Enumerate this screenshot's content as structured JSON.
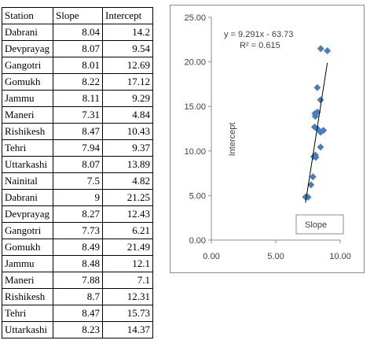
{
  "table": {
    "headers": [
      "Station",
      "Slope",
      "Intercept"
    ],
    "rows": [
      [
        "Dabrani",
        "8.04",
        "14.2"
      ],
      [
        "Devprayag",
        "8.07",
        "9.54"
      ],
      [
        "Gangotri",
        "8.01",
        "12.69"
      ],
      [
        "Gomukh",
        "8.22",
        "17.12"
      ],
      [
        "Jammu",
        "8.11",
        "9.29"
      ],
      [
        "Maneri",
        "7.31",
        "4.84"
      ],
      [
        "Rishikesh",
        "8.47",
        "10.43"
      ],
      [
        "Tehri",
        "7.94",
        "9.37"
      ],
      [
        "Uttarkashi",
        "8.07",
        "13.89"
      ],
      [
        "Nainital",
        "7.5",
        "4.82"
      ],
      [
        "Dabrani",
        "9",
        "21.25"
      ],
      [
        "Devprayag",
        "8.27",
        "12.43"
      ],
      [
        "Gangotri",
        "7.73",
        "6.21"
      ],
      [
        "Gomukh",
        "8.49",
        "21.49"
      ],
      [
        "Jammu",
        "8.48",
        "12.1"
      ],
      [
        "Maneri",
        "7.88",
        "7.1"
      ],
      [
        "Rishikesh",
        "8.7",
        "12.31"
      ],
      [
        "Tehri",
        "8.47",
        "15.73"
      ],
      [
        "Uttarkashi",
        "8.23",
        "14.37"
      ]
    ]
  },
  "chart_data": {
    "type": "scatter",
    "x": [
      8.04,
      8.07,
      8.01,
      8.22,
      8.11,
      7.31,
      8.47,
      7.94,
      8.07,
      7.5,
      9,
      8.27,
      7.73,
      8.49,
      8.48,
      7.88,
      8.7,
      8.47,
      8.23
    ],
    "y": [
      14.2,
      9.54,
      12.69,
      17.12,
      9.29,
      4.84,
      10.43,
      9.37,
      13.89,
      4.82,
      21.25,
      12.43,
      6.21,
      21.49,
      12.1,
      7.1,
      12.31,
      15.73,
      14.37
    ],
    "title": "",
    "xlabel": "",
    "ylabel": "Intercept",
    "xlim": [
      0,
      10
    ],
    "ylim": [
      0,
      25
    ],
    "xticks": [
      "0.00",
      "5.00",
      "10.00"
    ],
    "yticks": [
      "0.00",
      "5.00",
      "10.00",
      "15.00",
      "20.00",
      "25.00"
    ],
    "grid": false,
    "legend": {
      "entries": [
        "Slope"
      ],
      "placement": "bottom-right"
    },
    "trendline": {
      "equation": "y = 9.291x - 63.73",
      "r_squared": "R² = 0.615",
      "slope": 9.291,
      "intercept": -63.73
    },
    "marker_color": "#4a7ebb",
    "line_color": "#000000"
  }
}
